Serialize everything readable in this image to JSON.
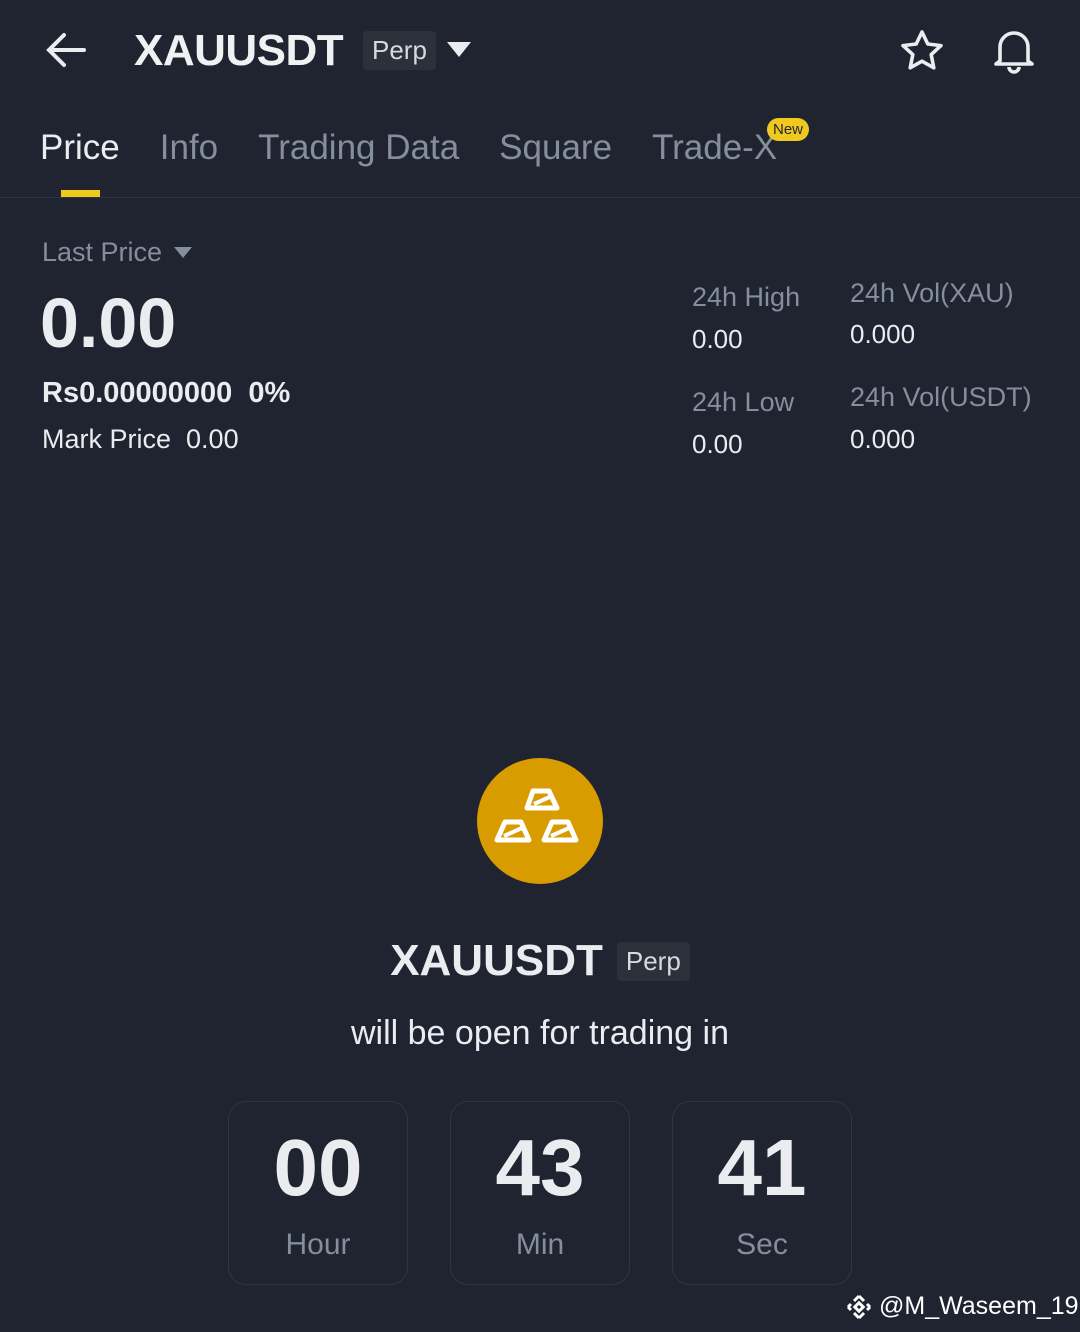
{
  "header": {
    "symbol": "XAUUSDT",
    "type_badge": "Perp",
    "icons": [
      "arrow-left-icon",
      "caret-down-icon",
      "star-icon",
      "bell-icon"
    ]
  },
  "tabs": [
    {
      "label": "Price",
      "active": true
    },
    {
      "label": "Info"
    },
    {
      "label": "Trading Data"
    },
    {
      "label": "Square"
    },
    {
      "label": "Trade-X",
      "badge": "New"
    }
  ],
  "price": {
    "last_price_label": "Last Price",
    "last_price": "0.00",
    "local_price": "Rs0.00000000",
    "change": "0%",
    "mark_price_label": "Mark Price",
    "mark_price": "0.00"
  },
  "stats": {
    "high_label": "24h High",
    "high": "0.00",
    "low_label": "24h Low",
    "low": "0.00",
    "vol_base_label": "24h Vol(XAU)",
    "vol_base": "0.000",
    "vol_quote_label": "24h Vol(USDT)",
    "vol_quote": "0.000"
  },
  "launch": {
    "symbol": "XAUUSDT",
    "badge": "Perp",
    "message": "will be open for trading in",
    "icon": "gold-bars-icon",
    "icon_color": "#d89c00"
  },
  "countdown": [
    {
      "value": "00",
      "label": "Hour"
    },
    {
      "value": "43",
      "label": "Min"
    },
    {
      "value": "41",
      "label": "Sec"
    }
  ],
  "watermark": "@M_Waseem_19",
  "colors": {
    "background": "#1f2430",
    "accent": "#f0c91e"
  }
}
